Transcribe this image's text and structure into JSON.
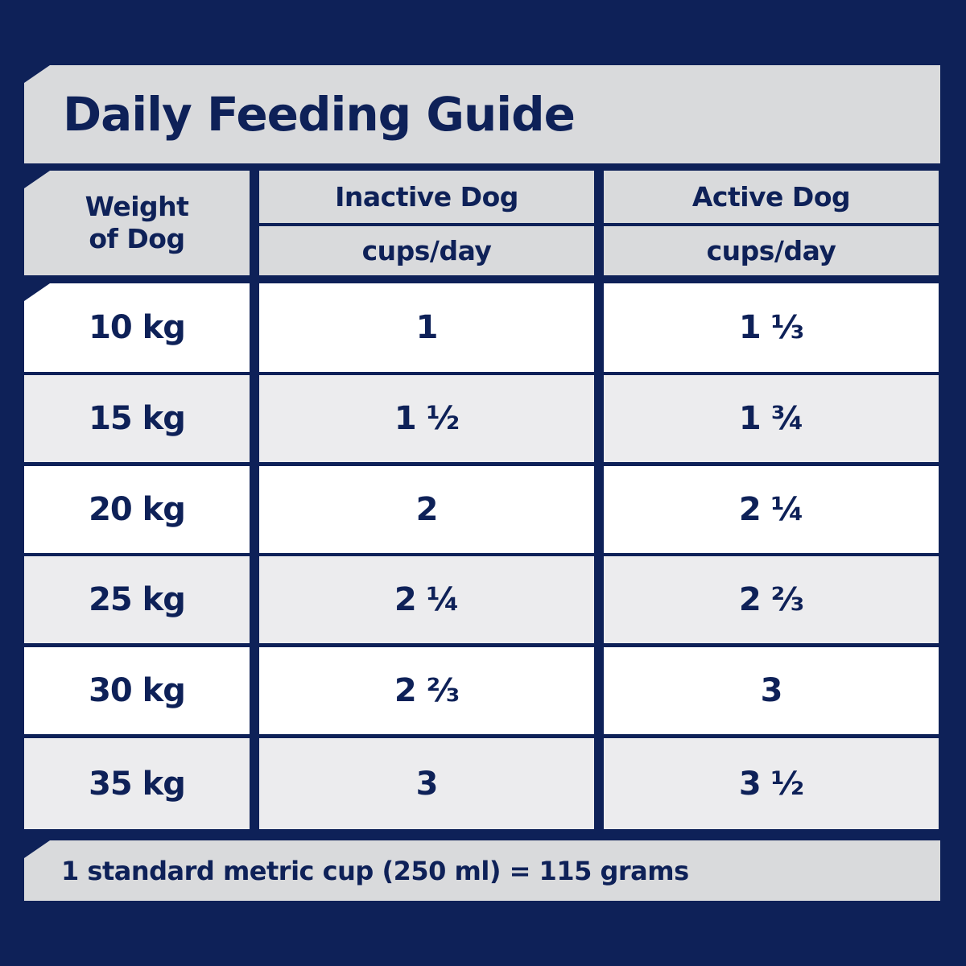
{
  "title": "Daily Feeding Guide",
  "header": {
    "weight": [
      "Weight",
      "of Dog"
    ],
    "inactive": {
      "label": "Inactive Dog",
      "unit": "cups/day"
    },
    "active": {
      "label": "Active Dog",
      "unit": "cups/day"
    }
  },
  "rows": [
    {
      "weight": "10 kg",
      "inactive": "1",
      "active": "1 ⅓"
    },
    {
      "weight": "15 kg",
      "inactive": "1 ½",
      "active": "1 ¾"
    },
    {
      "weight": "20 kg",
      "inactive": "2",
      "active": "2 ¼"
    },
    {
      "weight": "25 kg",
      "inactive": "2 ¼",
      "active": "2 ⅔"
    },
    {
      "weight": "30 kg",
      "inactive": "2 ⅔",
      "active": "3"
    },
    {
      "weight": "35 kg",
      "inactive": "3",
      "active": "3 ½"
    }
  ],
  "footer": "1 standard metric cup (250 ml) = 115 grams",
  "colors": {
    "navy": "#0e2158",
    "gray": "#d9dadc",
    "light": "#ececee",
    "white": "#ffffff"
  }
}
